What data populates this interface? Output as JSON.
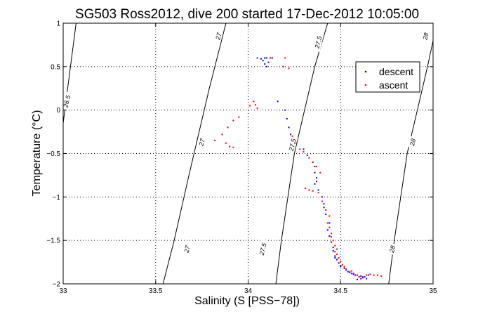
{
  "chart_data": {
    "type": "scatter",
    "title": "SG503 Ross2012, dive 200 started 17-Dec-2012 10:05:00",
    "xlabel": "Salinity (S [PSS−78])",
    "ylabel": "Temperature (°C)",
    "xlim": [
      33,
      35
    ],
    "ylim": [
      -2,
      1
    ],
    "grid": true,
    "legend_position": "top-right",
    "x_ticks": [
      33,
      33.5,
      34,
      34.5,
      35
    ],
    "x_tick_labels": [
      "33",
      "33.5",
      "34",
      "34.5",
      "35"
    ],
    "y_ticks": [
      1,
      0.5,
      0,
      -0.5,
      -1,
      -1.5,
      -2
    ],
    "y_tick_labels": [
      "1",
      "0.5",
      "0",
      "−0.5",
      "−1",
      "−1.5",
      "−2"
    ],
    "series": [
      {
        "name": "descent",
        "color": "#0000ff",
        "points": [
          [
            34.05,
            0.6
          ],
          [
            34.07,
            0.59
          ],
          [
            34.09,
            0.6
          ],
          [
            34.1,
            0.6
          ],
          [
            34.13,
            0.6
          ],
          [
            34.08,
            0.57
          ],
          [
            34.11,
            0.55
          ],
          [
            34.09,
            0.53
          ],
          [
            34.1,
            0.5
          ],
          [
            34.16,
            0.1
          ],
          [
            34.2,
            0.0
          ],
          [
            34.21,
            -0.1
          ],
          [
            34.22,
            -0.2
          ],
          [
            34.23,
            -0.28
          ],
          [
            34.3,
            -0.45
          ],
          [
            34.32,
            -0.52
          ],
          [
            34.35,
            -0.6
          ],
          [
            34.36,
            -0.65
          ],
          [
            34.36,
            -0.72
          ],
          [
            34.37,
            -0.78
          ],
          [
            34.37,
            -0.82
          ],
          [
            34.36,
            -0.85
          ],
          [
            34.38,
            -0.92
          ],
          [
            34.4,
            -1.0
          ],
          [
            34.41,
            -1.08
          ],
          [
            34.41,
            -1.12
          ],
          [
            34.42,
            -1.2
          ],
          [
            34.44,
            -1.3
          ],
          [
            34.43,
            -1.38
          ],
          [
            34.44,
            -1.45
          ],
          [
            34.45,
            -1.52
          ],
          [
            34.46,
            -1.58
          ],
          [
            34.46,
            -1.62
          ],
          [
            34.47,
            -1.68
          ],
          [
            34.48,
            -1.72
          ],
          [
            34.49,
            -1.76
          ],
          [
            34.5,
            -1.79
          ],
          [
            34.52,
            -1.82
          ],
          [
            34.54,
            -1.86
          ],
          [
            34.56,
            -1.88
          ],
          [
            34.58,
            -1.9
          ],
          [
            34.6,
            -1.92
          ],
          [
            34.61,
            -1.94
          ],
          [
            34.62,
            -1.93
          ],
          [
            34.63,
            -1.92
          ],
          [
            34.65,
            -1.9
          ],
          [
            34.59,
            -1.95
          ],
          [
            34.64,
            -1.94
          ],
          [
            34.53,
            -1.84
          ],
          [
            34.47,
            -1.7
          ],
          [
            34.5,
            -1.8
          ],
          [
            34.57,
            -1.89
          ],
          [
            34.61,
            -1.91
          ],
          [
            34.55,
            -1.87
          ]
        ]
      },
      {
        "name": "ascent",
        "color": "#ff0000",
        "points": [
          [
            34.12,
            0.6
          ],
          [
            34.2,
            0.6
          ],
          [
            34.22,
            0.48
          ],
          [
            34.19,
            0.5
          ],
          [
            34.03,
            0.1
          ],
          [
            34.04,
            0.06
          ],
          [
            34.05,
            0.02
          ],
          [
            34.01,
            0.05
          ],
          [
            33.95,
            -0.08
          ],
          [
            33.92,
            -0.12
          ],
          [
            33.89,
            -0.2
          ],
          [
            33.86,
            -0.28
          ],
          [
            33.82,
            -0.35
          ],
          [
            33.88,
            -0.38
          ],
          [
            33.9,
            -0.42
          ],
          [
            33.92,
            -0.43
          ],
          [
            34.24,
            -0.3
          ],
          [
            34.26,
            -0.38
          ],
          [
            34.28,
            -0.45
          ],
          [
            34.3,
            -0.48
          ],
          [
            34.33,
            -0.55
          ],
          [
            34.35,
            -0.6
          ],
          [
            34.37,
            -0.65
          ],
          [
            34.39,
            -0.72
          ],
          [
            34.31,
            -0.9
          ],
          [
            34.33,
            -0.92
          ],
          [
            34.35,
            -0.93
          ],
          [
            34.38,
            -0.95
          ],
          [
            34.4,
            -1.05
          ],
          [
            34.42,
            -1.15
          ],
          [
            34.44,
            -1.22
          ],
          [
            34.43,
            -1.3
          ],
          [
            34.44,
            -1.35
          ],
          [
            34.45,
            -1.42
          ],
          [
            34.46,
            -1.5
          ],
          [
            34.47,
            -1.56
          ],
          [
            34.47,
            -1.63
          ],
          [
            34.48,
            -1.66
          ],
          [
            34.49,
            -1.7
          ],
          [
            34.5,
            -1.74
          ],
          [
            34.51,
            -1.78
          ],
          [
            34.52,
            -1.8
          ],
          [
            34.53,
            -1.83
          ],
          [
            34.55,
            -1.86
          ],
          [
            34.57,
            -1.88
          ],
          [
            34.59,
            -1.9
          ],
          [
            34.6,
            -1.92
          ],
          [
            34.62,
            -1.92
          ],
          [
            34.64,
            -1.9
          ],
          [
            34.66,
            -1.89
          ],
          [
            34.68,
            -1.9
          ],
          [
            34.7,
            -1.9
          ],
          [
            34.72,
            -1.91
          ],
          [
            34.45,
            -1.46
          ],
          [
            34.48,
            -1.6
          ],
          [
            34.56,
            -1.85
          ]
        ]
      }
    ],
    "isopycnals": [
      {
        "label": "26.5",
        "points": [
          [
            33.0,
            -0.15
          ],
          [
            33.07,
            1.0
          ]
        ]
      },
      {
        "label": "27",
        "points": [
          [
            33.54,
            -2.0
          ],
          [
            33.6,
            -1.5
          ],
          [
            33.68,
            -0.75
          ],
          [
            33.79,
            0.25
          ],
          [
            33.88,
            1.0
          ]
        ]
      },
      {
        "label": "27.5",
        "points": [
          [
            34.15,
            -2.0
          ],
          [
            34.18,
            -1.5
          ],
          [
            34.25,
            -0.5
          ],
          [
            34.36,
            0.5
          ],
          [
            34.43,
            1.0
          ]
        ]
      },
      {
        "label": "28",
        "points": [
          [
            34.76,
            -2.0
          ],
          [
            34.79,
            -1.5
          ],
          [
            34.86,
            -0.5
          ],
          [
            34.97,
            0.5
          ],
          [
            35.0,
            0.8
          ]
        ]
      }
    ],
    "isopycnal_labels": [
      {
        "text": "26.5",
        "x": 33.02,
        "y": 0.1
      },
      {
        "text": "27",
        "x": 33.67,
        "y": -1.6
      },
      {
        "text": "27",
        "x": 33.75,
        "y": -0.37
      },
      {
        "text": "27",
        "x": 33.84,
        "y": 0.85
      },
      {
        "text": "27.5",
        "x": 34.08,
        "y": -1.6
      },
      {
        "text": "27.5",
        "x": 34.24,
        "y": -0.4
      },
      {
        "text": "27.5",
        "x": 34.38,
        "y": 0.78
      },
      {
        "text": "28",
        "x": 34.78,
        "y": -1.6
      },
      {
        "text": "28",
        "x": 34.89,
        "y": -0.37
      },
      {
        "text": "28",
        "x": 34.96,
        "y": 0.85
      }
    ]
  }
}
